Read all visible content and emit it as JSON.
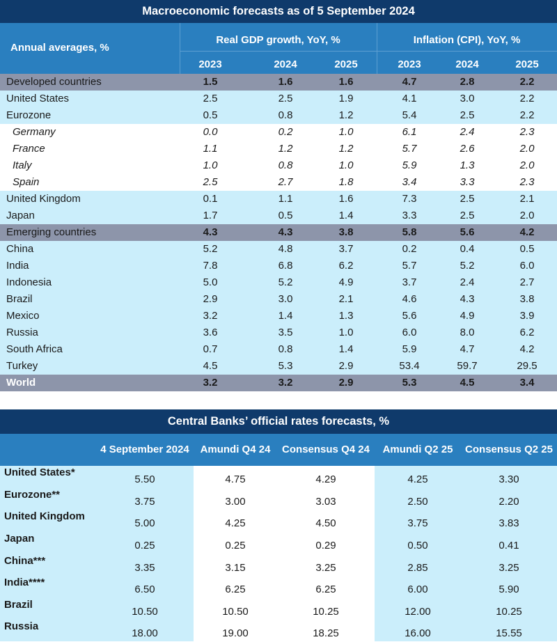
{
  "macro": {
    "title": "Macroeconomic forecasts as of 5 September 2024",
    "row_header": "Annual averages, %",
    "groups": [
      "Real GDP growth, YoY, %",
      "Inflation (CPI), YoY, %"
    ],
    "years": [
      "2023",
      "2024",
      "2025",
      "2023",
      "2024",
      "2025"
    ],
    "rows": [
      {
        "name": "Developed countries",
        "style": "agg",
        "values": [
          "1.5",
          "1.6",
          "1.6",
          "4.7",
          "2.8",
          "2.2"
        ]
      },
      {
        "name": "United States",
        "style": "blue",
        "values": [
          "2.5",
          "2.5",
          "1.9",
          "4.1",
          "3.0",
          "2.2"
        ]
      },
      {
        "name": "Eurozone",
        "style": "blue",
        "values": [
          "0.5",
          "0.8",
          "1.2",
          "5.4",
          "2.5",
          "2.2"
        ]
      },
      {
        "name": "Germany",
        "style": "white",
        "values": [
          "0.0",
          "0.2",
          "1.0",
          "6.1",
          "2.4",
          "2.3"
        ]
      },
      {
        "name": "France",
        "style": "white",
        "values": [
          "1.1",
          "1.2",
          "1.2",
          "5.7",
          "2.6",
          "2.0"
        ]
      },
      {
        "name": "Italy",
        "style": "white",
        "values": [
          "1.0",
          "0.8",
          "1.0",
          "5.9",
          "1.3",
          "2.0"
        ]
      },
      {
        "name": "Spain",
        "style": "white",
        "values": [
          "2.5",
          "2.7",
          "1.8",
          "3.4",
          "3.3",
          "2.3"
        ]
      },
      {
        "name": "United Kingdom",
        "style": "blue",
        "values": [
          "0.1",
          "1.1",
          "1.6",
          "7.3",
          "2.5",
          "2.1"
        ]
      },
      {
        "name": "Japan",
        "style": "blue",
        "values": [
          "1.7",
          "0.5",
          "1.4",
          "3.3",
          "2.5",
          "2.0"
        ]
      },
      {
        "name": "Emerging countries",
        "style": "agg",
        "values": [
          "4.3",
          "4.3",
          "3.8",
          "5.8",
          "5.6",
          "4.2"
        ]
      },
      {
        "name": "China",
        "style": "blue",
        "values": [
          "5.2",
          "4.8",
          "3.7",
          "0.2",
          "0.4",
          "0.5"
        ]
      },
      {
        "name": "India",
        "style": "blue",
        "values": [
          "7.8",
          "6.8",
          "6.2",
          "5.7",
          "5.2",
          "6.0"
        ]
      },
      {
        "name": "Indonesia",
        "style": "blue",
        "values": [
          "5.0",
          "5.2",
          "4.9",
          "3.7",
          "2.4",
          "2.7"
        ]
      },
      {
        "name": "Brazil",
        "style": "blue",
        "values": [
          "2.9",
          "3.0",
          "2.1",
          "4.6",
          "4.3",
          "3.8"
        ]
      },
      {
        "name": "Mexico",
        "style": "blue",
        "values": [
          "3.2",
          "1.4",
          "1.3",
          "5.6",
          "4.9",
          "3.9"
        ]
      },
      {
        "name": "Russia",
        "style": "blue",
        "values": [
          "3.6",
          "3.5",
          "1.0",
          "6.0",
          "8.0",
          "6.2"
        ]
      },
      {
        "name": "South Africa",
        "style": "blue",
        "values": [
          "0.7",
          "0.8",
          "1.4",
          "5.9",
          "4.7",
          "4.2"
        ]
      },
      {
        "name": "Turkey",
        "style": "blue",
        "values": [
          "4.5",
          "5.3",
          "2.9",
          "53.4",
          "59.7",
          "29.5"
        ]
      },
      {
        "name": "World",
        "style": "world",
        "values": [
          "3.2",
          "3.2",
          "2.9",
          "5.3",
          "4.5",
          "3.4"
        ]
      }
    ]
  },
  "rates": {
    "title": "Central Banks’ official rates forecasts, %",
    "columns": [
      "4 September 2024",
      "Amundi Q4 24",
      "Consensus Q4 24",
      "Amundi Q2 25",
      "Consensus Q2 25"
    ],
    "rows": [
      {
        "name": "United States*",
        "values": [
          "5.50",
          "4.75",
          "4.29",
          "4.25",
          "3.30"
        ]
      },
      {
        "name": "Eurozone**",
        "values": [
          "3.75",
          "3.00",
          "3.03",
          "2.50",
          "2.20"
        ]
      },
      {
        "name": "United Kingdom",
        "values": [
          "5.00",
          "4.25",
          "4.50",
          "3.75",
          "3.83"
        ]
      },
      {
        "name": "Japan",
        "values": [
          "0.25",
          "0.25",
          "0.29",
          "0.50",
          "0.41"
        ]
      },
      {
        "name": "China***",
        "values": [
          "3.35",
          "3.15",
          "3.25",
          "2.85",
          "3.25"
        ]
      },
      {
        "name": "India****",
        "values": [
          "6.50",
          "6.25",
          "6.25",
          "6.00",
          "5.90"
        ]
      },
      {
        "name": "Brazil",
        "values": [
          "10.50",
          "10.50",
          "10.25",
          "12.00",
          "10.25"
        ]
      },
      {
        "name": "Russia",
        "values": [
          "18.00",
          "19.00",
          "18.25",
          "16.00",
          "15.55"
        ]
      }
    ]
  },
  "colors": {
    "title_bar": "#0f3a6b",
    "header": "#2a7fbf",
    "aggregate_row": "#8d95aa",
    "light_row": "#cbeefb",
    "white_row": "#ffffff"
  },
  "chart_data": [
    {
      "type": "table",
      "title": "Macroeconomic forecasts as of 5 September 2024",
      "columns": [
        "Annual averages, %",
        "Real GDP growth 2023",
        "Real GDP growth 2024",
        "Real GDP growth 2025",
        "Inflation (CPI) 2023",
        "Inflation (CPI) 2024",
        "Inflation (CPI) 2025"
      ],
      "rows": [
        [
          "Developed countries",
          1.5,
          1.6,
          1.6,
          4.7,
          2.8,
          2.2
        ],
        [
          "United States",
          2.5,
          2.5,
          1.9,
          4.1,
          3.0,
          2.2
        ],
        [
          "Eurozone",
          0.5,
          0.8,
          1.2,
          5.4,
          2.5,
          2.2
        ],
        [
          "Germany",
          0.0,
          0.2,
          1.0,
          6.1,
          2.4,
          2.3
        ],
        [
          "France",
          1.1,
          1.2,
          1.2,
          5.7,
          2.6,
          2.0
        ],
        [
          "Italy",
          1.0,
          0.8,
          1.0,
          5.9,
          1.3,
          2.0
        ],
        [
          "Spain",
          2.5,
          2.7,
          1.8,
          3.4,
          3.3,
          2.3
        ],
        [
          "United Kingdom",
          0.1,
          1.1,
          1.6,
          7.3,
          2.5,
          2.1
        ],
        [
          "Japan",
          1.7,
          0.5,
          1.4,
          3.3,
          2.5,
          2.0
        ],
        [
          "Emerging countries",
          4.3,
          4.3,
          3.8,
          5.8,
          5.6,
          4.2
        ],
        [
          "China",
          5.2,
          4.8,
          3.7,
          0.2,
          0.4,
          0.5
        ],
        [
          "India",
          7.8,
          6.8,
          6.2,
          5.7,
          5.2,
          6.0
        ],
        [
          "Indonesia",
          5.0,
          5.2,
          4.9,
          3.7,
          2.4,
          2.7
        ],
        [
          "Brazil",
          2.9,
          3.0,
          2.1,
          4.6,
          4.3,
          3.8
        ],
        [
          "Mexico",
          3.2,
          1.4,
          1.3,
          5.6,
          4.9,
          3.9
        ],
        [
          "Russia",
          3.6,
          3.5,
          1.0,
          6.0,
          8.0,
          6.2
        ],
        [
          "South Africa",
          0.7,
          0.8,
          1.4,
          5.9,
          4.7,
          4.2
        ],
        [
          "Turkey",
          4.5,
          5.3,
          2.9,
          53.4,
          59.7,
          29.5
        ],
        [
          "World",
          3.2,
          3.2,
          2.9,
          5.3,
          4.5,
          3.4
        ]
      ]
    },
    {
      "type": "table",
      "title": "Central Banks’ official rates forecasts, %",
      "columns": [
        "",
        "4 September 2024",
        "Amundi Q4 24",
        "Consensus Q4 24",
        "Amundi Q2 25",
        "Consensus Q2 25"
      ],
      "rows": [
        [
          "United States*",
          5.5,
          4.75,
          4.29,
          4.25,
          3.3
        ],
        [
          "Eurozone**",
          3.75,
          3.0,
          3.03,
          2.5,
          2.2
        ],
        [
          "United Kingdom",
          5.0,
          4.25,
          4.5,
          3.75,
          3.83
        ],
        [
          "Japan",
          0.25,
          0.25,
          0.29,
          0.5,
          0.41
        ],
        [
          "China***",
          3.35,
          3.15,
          3.25,
          2.85,
          3.25
        ],
        [
          "India****",
          6.5,
          6.25,
          6.25,
          6.0,
          5.9
        ],
        [
          "Brazil",
          10.5,
          10.5,
          10.25,
          12.0,
          10.25
        ],
        [
          "Russia",
          18.0,
          19.0,
          18.25,
          16.0,
          15.55
        ]
      ]
    }
  ]
}
